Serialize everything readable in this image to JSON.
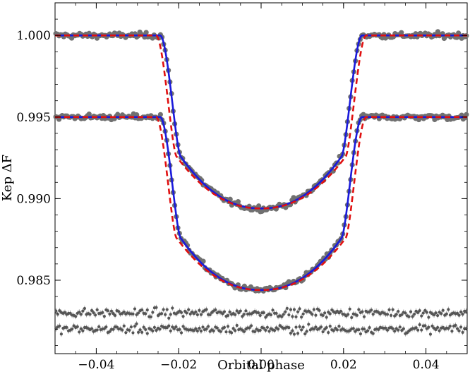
{
  "chart_data": {
    "type": "scatter",
    "title": "",
    "xlabel": "Orbital phase",
    "ylabel": "Kep ΔF",
    "xlim": [
      -0.05,
      0.05
    ],
    "ylim": [
      0.9805,
      1.002
    ],
    "grid": false,
    "legend": "none",
    "x_ticks": [
      -0.04,
      -0.02,
      0.0,
      0.02,
      0.04
    ],
    "x_tick_labels": [
      "−0.04",
      "−0.02",
      "0.00",
      "0.02",
      "0.04"
    ],
    "y_ticks": [
      0.985,
      0.99,
      0.995,
      1.0
    ],
    "y_tick_labels": [
      "0.985",
      "0.990",
      "0.995",
      "1.000"
    ],
    "colors": {
      "data_points": "#707070",
      "model_blue": "#1a1adb",
      "model_red": "#e01010",
      "residuals": "#555555"
    },
    "transit_upper": {
      "baseline": 1.0,
      "depth_at_center": 0.9894,
      "contact_1": -0.0245,
      "contact_2": -0.0195,
      "contact_3": 0.0195,
      "contact_4": 0.0245,
      "red_model_contacts": [
        -0.0255,
        -0.0205,
        0.0205,
        0.0255
      ]
    },
    "transit_lower": {
      "baseline": 0.995,
      "depth_at_center": 0.9844,
      "contact_1": -0.0245,
      "contact_2": -0.0195,
      "contact_3": 0.0195,
      "contact_4": 0.0245,
      "red_model_contacts": [
        -0.0255,
        -0.0205,
        0.0205,
        0.0255
      ]
    },
    "residual_levels": [
      0.983,
      0.982
    ],
    "residual_scatter": 0.00018,
    "flux_scatter": 0.00012
  }
}
